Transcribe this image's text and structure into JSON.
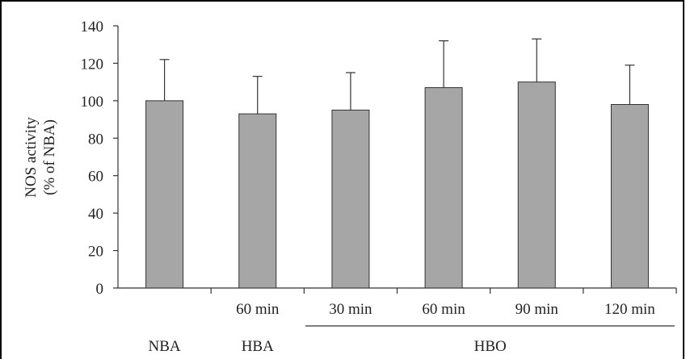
{
  "chart_data": {
    "type": "bar",
    "categories": [
      "NBA",
      "HBA 60 min",
      "HBO 30 min",
      "HBO 60 min",
      "HBO 90 min",
      "HBO 120 min"
    ],
    "x_sub_labels": [
      "",
      "60 min",
      "30 min",
      "60 min",
      "90 min",
      "120 min"
    ],
    "x_group_labels": [
      "NBA",
      "HBA",
      "HBO"
    ],
    "values": [
      100,
      93,
      95,
      107,
      110,
      98
    ],
    "error_plus": [
      22,
      20,
      20,
      25,
      23,
      21
    ],
    "ylabel_line1": "NOS activity",
    "ylabel_line2": "(% of NBA)",
    "ylim": [
      0,
      140
    ],
    "yticks": [
      "0",
      "20",
      "40",
      "60",
      "80",
      "100",
      "120",
      "140"
    ],
    "bar_color": "#a6a6a6",
    "grid": false
  }
}
